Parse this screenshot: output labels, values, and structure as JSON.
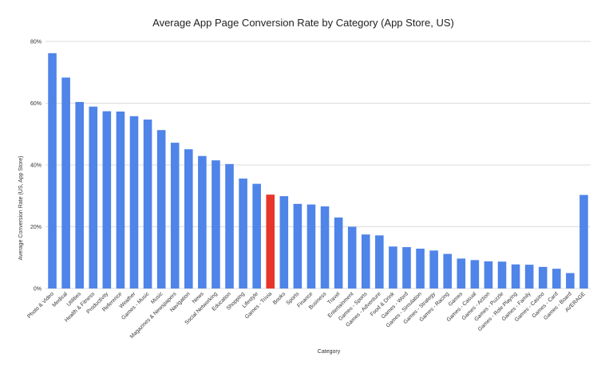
{
  "chart_data": {
    "type": "bar",
    "title": "Average App Page Conversion Rate by Category (App Store, US)",
    "xlabel": "Category",
    "ylabel": "Average Conversion Rate (US, App Store)",
    "ylim": [
      0,
      80
    ],
    "yticks": [
      "0%",
      "20%",
      "40%",
      "60%",
      "80%"
    ],
    "grid": true,
    "legend": "none",
    "colors": {
      "default": "#4f84e8",
      "highlight": "#e8352a"
    },
    "highlight_category": "Games - Trivia",
    "categories": [
      "Photo & Video",
      "Medical",
      "Utilities",
      "Health & Fitness",
      "Productivity",
      "Reference",
      "Weather",
      "Games - Music",
      "Music",
      "Magazines & Newspapers",
      "Navigation",
      "News",
      "Social Networking",
      "Education",
      "Shopping",
      "Lifestyle",
      "Games - Trivia",
      "Books",
      "Sports",
      "Finance",
      "Business",
      "Travel",
      "Entertainment",
      "Games - Sports",
      "Games - Adventure",
      "Food & Drink",
      "Games - Word",
      "Games - Simulation",
      "Games - Strategy",
      "Games - Racing",
      "Games",
      "Games - Casual",
      "Games - Action",
      "Games - Puzzle",
      "Games - Role Playing",
      "Games - Family",
      "Games - Casino",
      "Games - Card",
      "Games - Board",
      "AVERAGE"
    ],
    "values": [
      76.2,
      68.3,
      60.4,
      58.9,
      57.4,
      57.3,
      55.8,
      54.7,
      51.3,
      47.2,
      45.1,
      42.9,
      41.5,
      40.3,
      35.6,
      33.9,
      30.4,
      29.9,
      27.4,
      27.2,
      26.6,
      23.0,
      20.0,
      17.5,
      17.2,
      13.6,
      13.4,
      12.9,
      12.3,
      11.2,
      9.7,
      9.2,
      8.8,
      8.7,
      7.8,
      7.7,
      7.0,
      6.4,
      5.0,
      30.3
    ]
  }
}
